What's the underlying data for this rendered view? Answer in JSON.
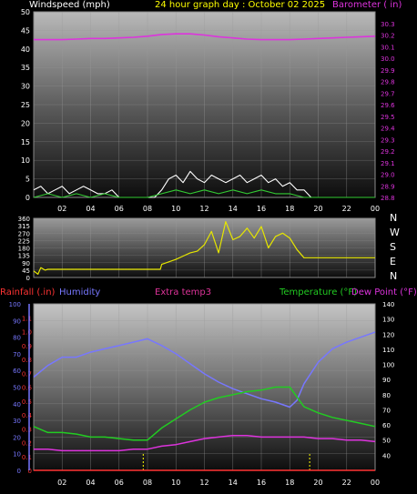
{
  "colors": {
    "background": "#000000",
    "wind": "#ffffff",
    "wind_gust": "#33cc33",
    "barometer": "#dd33dd",
    "direction": "#e6e600",
    "rainfall": "#ff3333",
    "humidity": "#7777ff",
    "extra_temp": "#dd3399",
    "temperature": "#22cc22",
    "dewpoint": "#dd33dd",
    "daylight_marker": "#ffff00",
    "axis_text": "#ffffff"
  },
  "header": {
    "windspeed_label": "Windspeed (mph)",
    "title": "24 hour graph day : October 02 2025",
    "barometer_label": "Barometer ( in)"
  },
  "panel3_labels": {
    "rainfall": "Rainfall (.in)",
    "humidity": "Humidity",
    "extra_temp": "Extra temp3",
    "temperature": "Temperature (°F)",
    "dewpoint": "Dew Point (°F)"
  },
  "direction_letters": [
    "N",
    "W",
    "S",
    "E",
    "N"
  ],
  "x_ticks": [
    "02",
    "04",
    "06",
    "08",
    "10",
    "12",
    "14",
    "16",
    "18",
    "20",
    "22",
    "00"
  ],
  "chart_data": [
    {
      "type": "line",
      "title": "24 hour graph day : October 02 2025",
      "xlabel": "",
      "ylabel": "Windspeed (mph)",
      "y2label": "Barometer ( in)",
      "xlim": [
        0,
        24
      ],
      "ylim": [
        0,
        50
      ],
      "y2lim": [
        28.8,
        30.4
      ],
      "y_ticks": [
        0,
        5,
        10,
        15,
        20,
        25,
        30,
        35,
        40,
        45,
        50
      ],
      "y2_ticks": [
        28.8,
        28.9,
        29.0,
        29.1,
        29.2,
        29.3,
        29.4,
        29.5,
        29.6,
        29.7,
        29.8,
        29.9,
        30.0,
        30.1,
        30.2,
        30.3
      ],
      "series": [
        {
          "axis": "y2",
          "color": "#dd33dd",
          "x": [
            0,
            1,
            2,
            3,
            4,
            5,
            6,
            7,
            8,
            9,
            10,
            11,
            12,
            13,
            14,
            15,
            16,
            17,
            18,
            19,
            20,
            21,
            22,
            23,
            24
          ],
          "y": [
            30.16,
            30.16,
            30.16,
            30.165,
            30.17,
            30.17,
            30.175,
            30.18,
            30.19,
            30.205,
            30.21,
            30.21,
            30.2,
            30.185,
            30.175,
            30.165,
            30.16,
            30.16,
            30.16,
            30.165,
            30.17,
            30.175,
            30.18,
            30.185,
            30.19
          ]
        },
        {
          "axis": "y",
          "color": "#ffffff",
          "x": [
            0,
            0.5,
            1,
            1.5,
            2,
            2.5,
            3,
            3.5,
            4,
            4.5,
            5,
            5.5,
            6,
            6.5,
            7,
            7.5,
            8,
            8.5,
            9,
            9.5,
            10,
            10.5,
            11,
            11.5,
            12,
            12.5,
            13,
            13.5,
            14,
            14.5,
            15,
            15.5,
            16,
            16.5,
            17,
            17.5,
            18,
            18.5,
            19,
            19.5,
            20,
            21,
            22,
            23,
            24
          ],
          "y": [
            2,
            3,
            1,
            2,
            3,
            1,
            2,
            3,
            2,
            1,
            1,
            2,
            0,
            0,
            0,
            0,
            0,
            0,
            2,
            5,
            6,
            4,
            7,
            5,
            4,
            6,
            5,
            4,
            5,
            6,
            4,
            5,
            6,
            4,
            5,
            3,
            4,
            2,
            2,
            0,
            0,
            0,
            0,
            0,
            0
          ]
        },
        {
          "axis": "y",
          "color": "#33cc33",
          "x": [
            0,
            1,
            2,
            3,
            4,
            5,
            6,
            7,
            8,
            9,
            10,
            11,
            12,
            13,
            14,
            15,
            16,
            17,
            18,
            19,
            20,
            24
          ],
          "y": [
            0,
            1,
            0,
            1,
            0,
            1,
            0,
            0,
            0,
            1,
            2,
            1,
            2,
            1,
            2,
            1,
            2,
            1,
            1,
            0,
            0,
            0
          ]
        }
      ]
    },
    {
      "type": "line",
      "ylabel": "Wind direction",
      "xlim": [
        0,
        24
      ],
      "ylim": [
        0,
        360
      ],
      "y_ticks": [
        0,
        45,
        90,
        135,
        180,
        225,
        270,
        315,
        360
      ],
      "series": [
        {
          "color": "#e6e600",
          "x": [
            0,
            0.3,
            0.5,
            0.8,
            1,
            8.9,
            9,
            10,
            10.5,
            11,
            11.5,
            12,
            12.5,
            13,
            13.5,
            14,
            14.5,
            15,
            15.5,
            16,
            16.5,
            17,
            17.5,
            18,
            18.5,
            19,
            19.5,
            24
          ],
          "y": [
            40,
            20,
            60,
            45,
            50,
            50,
            80,
            110,
            130,
            150,
            160,
            200,
            280,
            150,
            340,
            230,
            250,
            300,
            240,
            310,
            180,
            250,
            270,
            240,
            170,
            120,
            120,
            120
          ]
        }
      ]
    },
    {
      "type": "line",
      "labels": [
        "Rainfall (.in)",
        "Humidity",
        "Extra temp3",
        "Temperature (°F)",
        "Dew Point (°F)"
      ],
      "xlim": [
        0,
        24
      ],
      "ylim": [
        0,
        100
      ],
      "rain_lim": [
        0,
        1.2
      ],
      "temp_lim": [
        30,
        140
      ],
      "y_ticks": [
        0,
        10,
        20,
        30,
        40,
        50,
        60,
        70,
        80,
        90,
        100
      ],
      "rain_ticks": [
        0,
        0.1,
        0.2,
        0.3,
        0.4,
        0.5,
        0.6,
        0.7,
        0.8,
        0.9,
        1.0,
        1.1
      ],
      "temp_ticks": [
        40,
        50,
        60,
        70,
        80,
        90,
        100,
        110,
        120,
        130,
        140
      ],
      "daylight_markers_x": [
        7.7,
        19.4
      ],
      "series": [
        {
          "color": "#7777ff",
          "axis": "humidity",
          "x": [
            0,
            1,
            2,
            3,
            4,
            5,
            6,
            7,
            8,
            9,
            10,
            11,
            12,
            13,
            14,
            15,
            16,
            17,
            18,
            18.5,
            19,
            20,
            21,
            22,
            23,
            24
          ],
          "y": [
            56,
            63,
            68,
            68,
            71,
            73,
            75,
            77,
            79,
            75,
            70,
            64,
            58,
            53,
            49,
            46,
            43,
            41,
            38,
            42,
            52,
            65,
            73,
            77,
            80,
            83
          ]
        },
        {
          "color": "#22cc22",
          "axis": "temp",
          "x": [
            0,
            1,
            2,
            3,
            4,
            5,
            6,
            7,
            8,
            9,
            10,
            11,
            12,
            13,
            14,
            15,
            16,
            17,
            18,
            19,
            20,
            21,
            22,
            23,
            24
          ],
          "y": [
            59,
            55,
            55,
            54,
            52,
            52,
            51,
            50,
            50,
            58,
            64,
            70,
            75,
            78,
            80,
            82,
            83,
            85,
            85,
            72,
            68,
            65,
            63,
            61,
            59
          ]
        },
        {
          "color": "#dd33dd",
          "axis": "temp",
          "x": [
            0,
            1,
            2,
            3,
            4,
            5,
            6,
            7,
            8,
            9,
            10,
            11,
            12,
            13,
            14,
            15,
            16,
            17,
            18,
            19,
            20,
            21,
            22,
            23,
            24
          ],
          "y": [
            44,
            44,
            43,
            43,
            43,
            43,
            43,
            44,
            44,
            46,
            47,
            49,
            51,
            52,
            53,
            53,
            52,
            52,
            52,
            52,
            51,
            51,
            50,
            50,
            49
          ]
        },
        {
          "color": "#ff3333",
          "axis": "rain",
          "x": [
            0,
            24
          ],
          "y": [
            0,
            0
          ]
        }
      ]
    }
  ]
}
